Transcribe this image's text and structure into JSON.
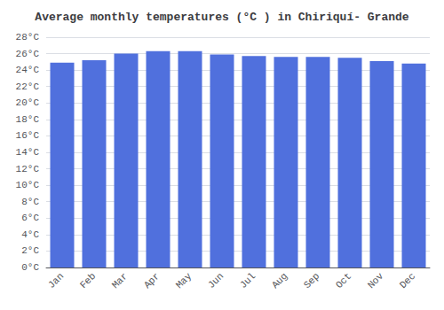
{
  "chart_data": {
    "type": "bar",
    "title": "Average monthly temperatures (°C ) in Chiriquí- Grande",
    "categories": [
      "Jan",
      "Feb",
      "Mar",
      "Apr",
      "May",
      "Jun",
      "Jul",
      "Aug",
      "Sep",
      "Oct",
      "Nov",
      "Dec"
    ],
    "values": [
      24.9,
      25.2,
      26.0,
      26.3,
      26.3,
      25.9,
      25.7,
      25.6,
      25.6,
      25.5,
      25.1,
      24.8
    ],
    "ylim": [
      0,
      28
    ],
    "yticks": [
      {
        "value": 0,
        "label": "0°C"
      },
      {
        "value": 2,
        "label": "2°C"
      },
      {
        "value": 4,
        "label": "4°C"
      },
      {
        "value": 6,
        "label": "6°C"
      },
      {
        "value": 8,
        "label": "8°C"
      },
      {
        "value": 10,
        "label": "10°C"
      },
      {
        "value": 12,
        "label": "12°C"
      },
      {
        "value": 14,
        "label": "14°C"
      },
      {
        "value": 16,
        "label": "16°C"
      },
      {
        "value": 18,
        "label": "18°C"
      },
      {
        "value": 20,
        "label": "20°C"
      },
      {
        "value": 22,
        "label": "22°C"
      },
      {
        "value": 24,
        "label": "24°C"
      },
      {
        "value": 26,
        "label": "26°C"
      },
      {
        "value": 28,
        "label": "28°C"
      }
    ],
    "grid": true
  }
}
